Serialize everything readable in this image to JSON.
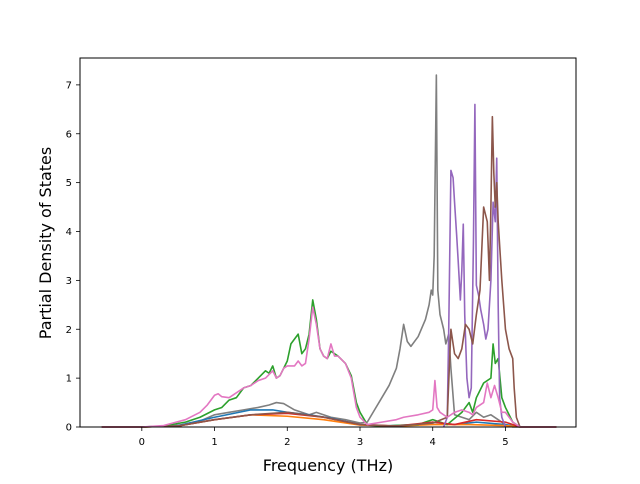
{
  "chart_data": {
    "type": "line",
    "title": "",
    "xlabel": "Frequency (THz)",
    "ylabel": "Partial Density of States",
    "xlim": [
      -0.85,
      5.97
    ],
    "ylim": [
      0,
      7.55
    ],
    "xticks": [
      0,
      1,
      2,
      3,
      4,
      5
    ],
    "yticks": [
      0,
      1,
      2,
      3,
      4,
      5,
      6,
      7
    ],
    "grid": false,
    "legend": "none",
    "series": [
      {
        "color": "#7f7f7f",
        "points": [
          [
            -0.55,
            0
          ],
          [
            0,
            0
          ],
          [
            0.3,
            0.01
          ],
          [
            0.6,
            0.05
          ],
          [
            0.8,
            0.12
          ],
          [
            1.0,
            0.25
          ],
          [
            1.2,
            0.3
          ],
          [
            1.4,
            0.35
          ],
          [
            1.6,
            0.4
          ],
          [
            1.75,
            0.45
          ],
          [
            1.85,
            0.5
          ],
          [
            1.95,
            0.48
          ],
          [
            2.1,
            0.35
          ],
          [
            2.3,
            0.25
          ],
          [
            2.4,
            0.3
          ],
          [
            2.6,
            0.2
          ],
          [
            2.8,
            0.15
          ],
          [
            3.0,
            0.08
          ],
          [
            3.1,
            0.1
          ],
          [
            3.2,
            0.35
          ],
          [
            3.3,
            0.6
          ],
          [
            3.4,
            0.85
          ],
          [
            3.5,
            1.2
          ],
          [
            3.55,
            1.6
          ],
          [
            3.6,
            2.1
          ],
          [
            3.65,
            1.75
          ],
          [
            3.7,
            1.65
          ],
          [
            3.8,
            1.85
          ],
          [
            3.9,
            2.2
          ],
          [
            3.95,
            2.5
          ],
          [
            3.98,
            2.8
          ],
          [
            4.0,
            2.7
          ],
          [
            4.02,
            3.5
          ],
          [
            4.05,
            7.2
          ],
          [
            4.07,
            2.8
          ],
          [
            4.1,
            2.3
          ],
          [
            4.15,
            2.0
          ],
          [
            4.18,
            1.7
          ],
          [
            4.22,
            1.9
          ],
          [
            4.25,
            1.2
          ],
          [
            4.3,
            0.25
          ],
          [
            4.4,
            0.2
          ],
          [
            4.5,
            0.15
          ],
          [
            4.6,
            0.3
          ],
          [
            4.7,
            0.2
          ],
          [
            4.8,
            0.25
          ],
          [
            4.9,
            0.15
          ],
          [
            5.0,
            0.05
          ],
          [
            5.1,
            0
          ],
          [
            5.7,
            0
          ]
        ]
      },
      {
        "color": "#1f77b4",
        "points": [
          [
            -0.55,
            0
          ],
          [
            0,
            0
          ],
          [
            0.5,
            0.03
          ],
          [
            1.0,
            0.2
          ],
          [
            1.5,
            0.35
          ],
          [
            1.8,
            0.35
          ],
          [
            2.0,
            0.3
          ],
          [
            2.3,
            0.25
          ],
          [
            2.6,
            0.18
          ],
          [
            3.0,
            0.05
          ],
          [
            3.3,
            0.02
          ],
          [
            3.8,
            0.05
          ],
          [
            4.0,
            0.1
          ],
          [
            4.3,
            0.05
          ],
          [
            4.6,
            0.1
          ],
          [
            5.0,
            0.05
          ],
          [
            5.2,
            0
          ],
          [
            5.7,
            0
          ]
        ]
      },
      {
        "color": "#ff7f0e",
        "points": [
          [
            -0.55,
            0
          ],
          [
            0,
            0
          ],
          [
            0.5,
            0.02
          ],
          [
            1.0,
            0.15
          ],
          [
            1.5,
            0.25
          ],
          [
            2.0,
            0.22
          ],
          [
            2.5,
            0.15
          ],
          [
            3.0,
            0.04
          ],
          [
            3.5,
            0.02
          ],
          [
            4.0,
            0.05
          ],
          [
            4.5,
            0.05
          ],
          [
            5.0,
            0.03
          ],
          [
            5.2,
            0
          ],
          [
            5.7,
            0
          ]
        ]
      },
      {
        "color": "#2ca02c",
        "points": [
          [
            -0.55,
            0
          ],
          [
            0,
            0
          ],
          [
            0.3,
            0.02
          ],
          [
            0.6,
            0.1
          ],
          [
            0.8,
            0.2
          ],
          [
            1.0,
            0.35
          ],
          [
            1.1,
            0.4
          ],
          [
            1.2,
            0.55
          ],
          [
            1.3,
            0.6
          ],
          [
            1.4,
            0.8
          ],
          [
            1.5,
            0.85
          ],
          [
            1.6,
            1.0
          ],
          [
            1.7,
            1.15
          ],
          [
            1.75,
            1.1
          ],
          [
            1.8,
            1.25
          ],
          [
            1.85,
            1.0
          ],
          [
            1.9,
            1.05
          ],
          [
            1.95,
            1.2
          ],
          [
            2.0,
            1.35
          ],
          [
            2.05,
            1.7
          ],
          [
            2.1,
            1.8
          ],
          [
            2.15,
            1.9
          ],
          [
            2.2,
            1.5
          ],
          [
            2.25,
            1.6
          ],
          [
            2.3,
            1.9
          ],
          [
            2.35,
            2.6
          ],
          [
            2.4,
            2.2
          ],
          [
            2.45,
            1.6
          ],
          [
            2.5,
            1.45
          ],
          [
            2.55,
            1.4
          ],
          [
            2.6,
            1.55
          ],
          [
            2.7,
            1.45
          ],
          [
            2.8,
            1.3
          ],
          [
            2.88,
            1.05
          ],
          [
            2.95,
            0.5
          ],
          [
            3.0,
            0.3
          ],
          [
            3.1,
            0.05
          ],
          [
            3.3,
            0.02
          ],
          [
            3.8,
            0.05
          ],
          [
            4.0,
            0.15
          ],
          [
            4.2,
            0.05
          ],
          [
            4.4,
            0.3
          ],
          [
            4.5,
            0.5
          ],
          [
            4.55,
            0.3
          ],
          [
            4.6,
            0.6
          ],
          [
            4.7,
            0.9
          ],
          [
            4.8,
            1.0
          ],
          [
            4.83,
            1.7
          ],
          [
            4.86,
            1.3
          ],
          [
            4.9,
            1.4
          ],
          [
            4.95,
            0.6
          ],
          [
            5.0,
            0.4
          ],
          [
            5.1,
            0.1
          ],
          [
            5.2,
            0
          ],
          [
            5.7,
            0
          ]
        ]
      },
      {
        "color": "#d62728",
        "points": [
          [
            -0.55,
            0
          ],
          [
            0,
            0
          ],
          [
            0.5,
            0.02
          ],
          [
            1.0,
            0.15
          ],
          [
            1.5,
            0.25
          ],
          [
            2.0,
            0.28
          ],
          [
            2.5,
            0.2
          ],
          [
            3.0,
            0.05
          ],
          [
            3.5,
            0.02
          ],
          [
            4.0,
            0.1
          ],
          [
            4.3,
            0.05
          ],
          [
            4.6,
            0.15
          ],
          [
            5.0,
            0.1
          ],
          [
            5.2,
            0
          ],
          [
            5.7,
            0
          ]
        ]
      },
      {
        "color": "#9467bd",
        "points": [
          [
            4.15,
            0
          ],
          [
            4.2,
            0.2
          ],
          [
            4.22,
            2.0
          ],
          [
            4.25,
            5.25
          ],
          [
            4.28,
            5.1
          ],
          [
            4.3,
            4.6
          ],
          [
            4.33,
            3.9
          ],
          [
            4.35,
            3.4
          ],
          [
            4.38,
            2.6
          ],
          [
            4.4,
            3.2
          ],
          [
            4.42,
            4.15
          ],
          [
            4.44,
            2.3
          ],
          [
            4.47,
            1.0
          ],
          [
            4.5,
            0.6
          ],
          [
            4.53,
            0.8
          ],
          [
            4.56,
            3.8
          ],
          [
            4.58,
            6.6
          ],
          [
            4.6,
            2.9
          ],
          [
            4.63,
            2.7
          ],
          [
            4.66,
            2.4
          ],
          [
            4.7,
            2.1
          ],
          [
            4.73,
            1.8
          ],
          [
            4.76,
            2.0
          ],
          [
            4.8,
            3.0
          ],
          [
            4.83,
            4.6
          ],
          [
            4.86,
            4.2
          ],
          [
            4.88,
            5.5
          ],
          [
            4.9,
            2.5
          ],
          [
            4.92,
            0.6
          ],
          [
            4.95,
            0.2
          ],
          [
            5.0,
            0
          ]
        ]
      },
      {
        "color": "#8c564b",
        "points": [
          [
            -0.55,
            0
          ],
          [
            0,
            0
          ],
          [
            0.5,
            0.02
          ],
          [
            1.0,
            0.15
          ],
          [
            1.5,
            0.25
          ],
          [
            2.0,
            0.3
          ],
          [
            2.5,
            0.2
          ],
          [
            3.0,
            0.05
          ],
          [
            3.5,
            0.02
          ],
          [
            4.0,
            0.08
          ],
          [
            4.2,
            0.2
          ],
          [
            4.25,
            2.0
          ],
          [
            4.3,
            1.5
          ],
          [
            4.35,
            1.4
          ],
          [
            4.4,
            1.6
          ],
          [
            4.45,
            2.1
          ],
          [
            4.5,
            2.0
          ],
          [
            4.55,
            1.7
          ],
          [
            4.6,
            2.3
          ],
          [
            4.65,
            2.8
          ],
          [
            4.7,
            4.5
          ],
          [
            4.75,
            4.2
          ],
          [
            4.78,
            3.0
          ],
          [
            4.8,
            4.5
          ],
          [
            4.82,
            6.35
          ],
          [
            4.84,
            5.2
          ],
          [
            4.86,
            4.5
          ],
          [
            4.88,
            5.0
          ],
          [
            4.9,
            4.2
          ],
          [
            4.95,
            3.0
          ],
          [
            5.0,
            2.0
          ],
          [
            5.05,
            1.6
          ],
          [
            5.1,
            1.4
          ],
          [
            5.12,
            0.8
          ],
          [
            5.15,
            0.2
          ],
          [
            5.2,
            0
          ],
          [
            5.7,
            0
          ]
        ]
      },
      {
        "color": "#e377c2",
        "points": [
          [
            -0.55,
            0
          ],
          [
            0,
            0
          ],
          [
            0.3,
            0.03
          ],
          [
            0.6,
            0.15
          ],
          [
            0.8,
            0.3
          ],
          [
            0.9,
            0.45
          ],
          [
            1.0,
            0.65
          ],
          [
            1.05,
            0.68
          ],
          [
            1.1,
            0.62
          ],
          [
            1.2,
            0.6
          ],
          [
            1.3,
            0.7
          ],
          [
            1.4,
            0.8
          ],
          [
            1.5,
            0.85
          ],
          [
            1.6,
            0.95
          ],
          [
            1.7,
            1.0
          ],
          [
            1.8,
            1.15
          ],
          [
            1.85,
            1.0
          ],
          [
            1.9,
            1.05
          ],
          [
            1.95,
            1.2
          ],
          [
            2.0,
            1.25
          ],
          [
            2.1,
            1.25
          ],
          [
            2.15,
            1.35
          ],
          [
            2.2,
            1.25
          ],
          [
            2.25,
            1.3
          ],
          [
            2.3,
            1.8
          ],
          [
            2.35,
            2.45
          ],
          [
            2.4,
            2.1
          ],
          [
            2.45,
            1.6
          ],
          [
            2.5,
            1.45
          ],
          [
            2.55,
            1.4
          ],
          [
            2.6,
            1.7
          ],
          [
            2.65,
            1.45
          ],
          [
            2.7,
            1.45
          ],
          [
            2.8,
            1.3
          ],
          [
            2.88,
            1.0
          ],
          [
            2.95,
            0.4
          ],
          [
            3.0,
            0.2
          ],
          [
            3.1,
            0.05
          ],
          [
            3.3,
            0.1
          ],
          [
            3.5,
            0.15
          ],
          [
            3.6,
            0.2
          ],
          [
            3.8,
            0.25
          ],
          [
            3.95,
            0.3
          ],
          [
            4.0,
            0.35
          ],
          [
            4.03,
            0.95
          ],
          [
            4.06,
            0.4
          ],
          [
            4.1,
            0.3
          ],
          [
            4.2,
            0.2
          ],
          [
            4.3,
            0.3
          ],
          [
            4.4,
            0.35
          ],
          [
            4.5,
            0.3
          ],
          [
            4.55,
            0.25
          ],
          [
            4.6,
            0.4
          ],
          [
            4.7,
            0.5
          ],
          [
            4.75,
            0.9
          ],
          [
            4.8,
            0.6
          ],
          [
            4.85,
            0.85
          ],
          [
            4.9,
            0.6
          ],
          [
            4.95,
            0.3
          ],
          [
            5.0,
            0.3
          ],
          [
            5.05,
            0.2
          ],
          [
            5.1,
            0.1
          ],
          [
            5.2,
            0
          ],
          [
            5.7,
            0
          ]
        ]
      }
    ]
  }
}
